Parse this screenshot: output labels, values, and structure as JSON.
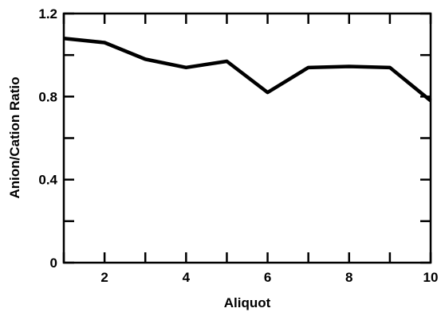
{
  "chart_data": {
    "type": "line",
    "title": "",
    "xlabel": "Aliquot",
    "ylabel": "Anion/Cation Ratio",
    "xlim": [
      1,
      10
    ],
    "ylim": [
      0,
      1.2
    ],
    "x_tick_labels": [
      "2",
      "4",
      "6",
      "8",
      "10"
    ],
    "x_tick_values": [
      2,
      4,
      6,
      8,
      10
    ],
    "x_minor_ticks": [
      1,
      2,
      3,
      4,
      5,
      6,
      7,
      8,
      9,
      10
    ],
    "y_tick_labels": [
      "0",
      "0.4",
      "0.8",
      "1.2"
    ],
    "y_tick_values": [
      0,
      0.4,
      0.8,
      1.2
    ],
    "y_minor_ticks": [
      0,
      0.2,
      0.4,
      0.6,
      0.8,
      1.0,
      1.2
    ],
    "grid": false,
    "legend": "none",
    "line_color": "#000000",
    "series": [
      {
        "x": [
          1,
          2,
          3,
          4,
          5,
          6,
          7,
          8,
          9,
          10
        ],
        "values": [
          1.08,
          1.06,
          0.98,
          0.94,
          0.97,
          0.82,
          0.94,
          0.945,
          0.94,
          0.78
        ]
      }
    ]
  }
}
